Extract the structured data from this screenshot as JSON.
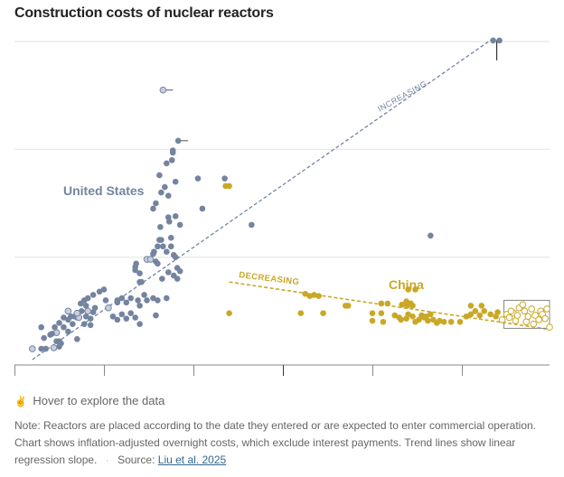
{
  "title": "Construction costs of nuclear reactors",
  "hover_note": "Hover to explore the data",
  "footnote": {
    "note": "Note: Reactors are placed according to the date they entered or are expected to enter commercial operation. Chart shows inflation-adjusted overnight costs, which exclude interest payments. Trend lines show linear regression slope.",
    "source_label": "Source:",
    "source_link": "Liu et al. 2025"
  },
  "colors": {
    "us": "#7484a0",
    "us_open": "#c8d0dd",
    "china": "#c9a826",
    "grid": "#e6e6e6",
    "axis": "#888888"
  },
  "chart_data": {
    "type": "scatter",
    "title": "Construction costs of nuclear reactors",
    "xlabel": "",
    "ylabel": "",
    "x_ticks": [
      "",
      "",
      "",
      "",
      "",
      ""
    ],
    "xlim": [
      0,
      6
    ],
    "ylim": [
      0,
      3
    ],
    "y_gridlines": [
      1,
      2,
      3
    ],
    "grid": true,
    "annotations": [
      {
        "text": "United States",
        "series": "United States"
      },
      {
        "text": "China",
        "series": "China"
      },
      {
        "text": "INCREASING",
        "series": "United States"
      },
      {
        "text": "DECREASING",
        "series": "China"
      }
    ],
    "trend_lines": [
      {
        "name": "increasing",
        "series": "United States",
        "from": [
          0.2,
          0.05
        ],
        "to": [
          5.35,
          3.03
        ]
      },
      {
        "name": "decreasing",
        "series": "China",
        "from": [
          2.4,
          0.77
        ],
        "to": [
          5.98,
          0.33
        ]
      }
    ],
    "series": [
      {
        "name": "United States",
        "points": [
          [
            0.2,
            0.15,
            "o"
          ],
          [
            0.3,
            0.15
          ],
          [
            0.35,
            0.15
          ],
          [
            0.33,
            0.25
          ],
          [
            0.3,
            0.35
          ],
          [
            0.44,
            0.16,
            "o"
          ],
          [
            0.47,
            0.22
          ],
          [
            0.5,
            0.22
          ],
          [
            0.47,
            0.3,
            "o"
          ],
          [
            0.5,
            0.17
          ],
          [
            0.52,
            0.2
          ],
          [
            0.4,
            0.28
          ],
          [
            0.42,
            0.29
          ],
          [
            0.45,
            0.35
          ],
          [
            0.55,
            0.35
          ],
          [
            0.6,
            0.42
          ],
          [
            0.65,
            0.38
          ],
          [
            0.6,
            0.31
          ],
          [
            0.7,
            0.24
          ],
          [
            0.5,
            0.39
          ],
          [
            0.55,
            0.44
          ],
          [
            0.6,
            0.5,
            "o"
          ],
          [
            0.63,
            0.45
          ],
          [
            0.67,
            0.45
          ],
          [
            0.7,
            0.44
          ],
          [
            0.72,
            0.44,
            "o"
          ],
          [
            0.75,
            0.5
          ],
          [
            0.8,
            0.45
          ],
          [
            0.82,
            0.5,
            "o"
          ],
          [
            0.85,
            0.43
          ],
          [
            0.88,
            0.49
          ],
          [
            0.9,
            0.53
          ],
          [
            0.85,
            0.37
          ],
          [
            0.8,
            0.55
          ],
          [
            0.78,
            0.38
          ],
          [
            0.7,
            0.48,
            "o"
          ],
          [
            0.74,
            0.57
          ],
          [
            0.78,
            0.6
          ],
          [
            0.82,
            0.62
          ],
          [
            0.88,
            0.65
          ],
          [
            0.95,
            0.68
          ],
          [
            1.0,
            0.7
          ],
          [
            1.02,
            0.6
          ],
          [
            1.05,
            0.53,
            "o"
          ],
          [
            1.1,
            0.45
          ],
          [
            1.15,
            0.42
          ],
          [
            1.2,
            0.47
          ],
          [
            1.25,
            0.43
          ],
          [
            1.3,
            0.48
          ],
          [
            1.35,
            0.44
          ],
          [
            1.4,
            0.38
          ],
          [
            1.15,
            0.58
          ],
          [
            1.2,
            0.62
          ],
          [
            1.25,
            0.58
          ],
          [
            1.15,
            0.6
          ],
          [
            1.38,
            0.6
          ],
          [
            1.45,
            0.65
          ],
          [
            1.4,
            0.55
          ],
          [
            1.3,
            0.62
          ],
          [
            1.4,
            0.77
          ],
          [
            1.42,
            0.77
          ],
          [
            1.48,
            0.6
          ],
          [
            1.55,
            0.62
          ],
          [
            1.6,
            0.6
          ],
          [
            1.7,
            0.62
          ],
          [
            1.58,
            0.46
          ],
          [
            1.35,
            0.88
          ],
          [
            1.35,
            0.91
          ],
          [
            1.36,
            0.94
          ],
          [
            1.4,
            0.85
          ],
          [
            1.48,
            0.98,
            "o"
          ],
          [
            1.52,
            0.98,
            "o"
          ],
          [
            1.55,
            1.03
          ],
          [
            1.56,
            1.05
          ],
          [
            1.6,
            1.1
          ],
          [
            1.62,
            1.16
          ],
          [
            1.64,
            1.16
          ],
          [
            1.66,
            1.1
          ],
          [
            1.7,
            1.05
          ],
          [
            1.75,
            1.1
          ],
          [
            1.78,
            1.02
          ],
          [
            1.8,
            1.0
          ],
          [
            1.82,
            0.9
          ],
          [
            1.85,
            0.87
          ],
          [
            1.58,
            0.96
          ],
          [
            1.6,
            0.94
          ],
          [
            1.65,
            0.8
          ],
          [
            1.72,
            0.86
          ],
          [
            1.78,
            0.83
          ],
          [
            1.82,
            0.8
          ],
          [
            1.75,
            1.18
          ],
          [
            1.63,
            1.28
          ],
          [
            1.73,
            1.33
          ],
          [
            1.8,
            1.38
          ],
          [
            1.85,
            1.3
          ],
          [
            1.55,
            1.45
          ],
          [
            1.58,
            1.5
          ],
          [
            1.64,
            1.6
          ],
          [
            1.72,
            1.57
          ],
          [
            1.72,
            1.37
          ],
          [
            1.68,
            1.65
          ],
          [
            1.8,
            1.7
          ],
          [
            1.7,
            1.87
          ],
          [
            1.62,
            1.76
          ],
          [
            1.76,
            1.9
          ],
          [
            1.77,
            1.97
          ],
          [
            1.77,
            1.99
          ],
          [
            2.05,
            1.73
          ],
          [
            2.1,
            1.45
          ],
          [
            2.35,
            1.73
          ],
          [
            2.65,
            1.3
          ],
          [
            4.65,
            1.2
          ],
          [
            1.83,
            2.08,
            "e"
          ],
          [
            1.66,
            2.55,
            "oe"
          ],
          [
            5.35,
            3.01
          ],
          [
            5.42,
            3.01,
            "err"
          ]
        ]
      },
      {
        "name": "China",
        "points": [
          [
            2.4,
            0.48
          ],
          [
            3.2,
            0.48
          ],
          [
            3.45,
            0.48
          ],
          [
            3.25,
            0.66
          ],
          [
            3.3,
            0.64
          ],
          [
            3.35,
            0.65
          ],
          [
            3.4,
            0.64
          ],
          [
            3.7,
            0.55
          ],
          [
            3.73,
            0.55
          ],
          [
            2.36,
            1.66
          ],
          [
            2.4,
            1.66
          ],
          [
            4.0,
            0.48
          ],
          [
            4.1,
            0.48
          ],
          [
            4.0,
            0.41
          ],
          [
            4.12,
            0.4
          ],
          [
            4.25,
            0.46
          ],
          [
            4.3,
            0.44
          ],
          [
            4.32,
            0.42
          ],
          [
            4.38,
            0.43
          ],
          [
            4.4,
            0.47
          ],
          [
            4.45,
            0.45
          ],
          [
            4.48,
            0.4
          ],
          [
            4.52,
            0.42
          ],
          [
            4.55,
            0.46
          ],
          [
            4.58,
            0.44
          ],
          [
            4.6,
            0.45
          ],
          [
            4.62,
            0.41
          ],
          [
            4.65,
            0.47
          ],
          [
            4.68,
            0.42
          ],
          [
            4.72,
            0.39
          ],
          [
            4.75,
            0.41
          ],
          [
            4.8,
            0.4
          ],
          [
            4.88,
            0.4
          ],
          [
            4.98,
            0.4
          ],
          [
            5.05,
            0.45
          ],
          [
            5.1,
            0.47
          ],
          [
            5.15,
            0.5
          ],
          [
            5.2,
            0.46
          ],
          [
            5.25,
            0.5
          ],
          [
            5.32,
            0.47
          ],
          [
            5.38,
            0.45
          ],
          [
            5.4,
            0.49
          ],
          [
            4.1,
            0.57
          ],
          [
            4.17,
            0.57
          ],
          [
            4.33,
            0.56
          ],
          [
            4.38,
            0.59
          ],
          [
            4.39,
            0.55
          ],
          [
            4.43,
            0.57
          ],
          [
            4.45,
            0.55
          ],
          [
            4.4,
            0.7
          ],
          [
            4.48,
            0.7
          ],
          [
            5.1,
            0.55
          ],
          [
            5.22,
            0.55
          ],
          [
            5.45,
            0.42,
            "o"
          ],
          [
            5.5,
            0.47,
            "o"
          ],
          [
            5.53,
            0.44,
            "o"
          ],
          [
            5.58,
            0.48,
            "o"
          ],
          [
            5.6,
            0.41,
            "o"
          ],
          [
            5.64,
            0.53,
            "o"
          ],
          [
            5.68,
            0.56,
            "o"
          ],
          [
            5.7,
            0.5,
            "o"
          ],
          [
            5.74,
            0.45,
            "o"
          ],
          [
            5.78,
            0.52,
            "o"
          ],
          [
            5.82,
            0.46,
            "o"
          ],
          [
            5.86,
            0.42,
            "o"
          ],
          [
            5.88,
            0.5,
            "o"
          ],
          [
            5.9,
            0.47,
            "o"
          ],
          [
            5.93,
            0.43,
            "o"
          ],
          [
            5.95,
            0.52,
            "o"
          ],
          [
            5.98,
            0.35,
            "o"
          ],
          [
            5.55,
            0.5,
            "o"
          ],
          [
            5.62,
            0.46,
            "o"
          ],
          [
            5.72,
            0.4,
            "o"
          ],
          [
            5.8,
            0.38,
            "o"
          ]
        ]
      }
    ],
    "highlight_box": {
      "x": [
        5.47,
        5.98
      ],
      "y": [
        0.34,
        0.6
      ]
    }
  }
}
